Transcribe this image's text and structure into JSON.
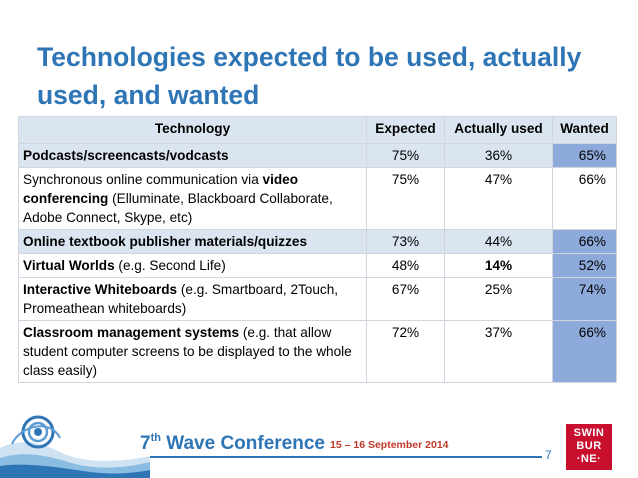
{
  "title": "Technologies expected to be used, actually used, and wanted",
  "table": {
    "headers": {
      "technology": "Technology",
      "expected": "Expected",
      "actually_used": "Actually used",
      "wanted": "Wanted"
    },
    "rows": [
      {
        "tech_parts": [
          {
            "text": "Podcasts/screencasts/vodcasts",
            "bold": true
          }
        ],
        "expected": "75%",
        "actually_used": "36%",
        "wanted": "65%",
        "wanted_highlight": true
      },
      {
        "tech_parts": [
          {
            "text": "Synchronous online communication via ",
            "bold": false
          },
          {
            "text": "video conferencing",
            "bold": true
          },
          {
            "text": " (Elluminate, Blackboard Collaborate, Adobe Connect, Skype, etc)",
            "bold": false
          }
        ],
        "expected": "75%",
        "actually_used": "47%",
        "wanted": "66%",
        "wanted_highlight": false
      },
      {
        "tech_parts": [
          {
            "text": "Online textbook publisher materials/quizzes",
            "bold": true
          }
        ],
        "expected": "73%",
        "actually_used": "44%",
        "wanted": "66%",
        "wanted_highlight": true
      },
      {
        "tech_parts": [
          {
            "text": "Virtual Worlds",
            "bold": true
          },
          {
            "text": " (e.g. Second Life)",
            "bold": false
          }
        ],
        "expected": "48%",
        "actually_used": "14%",
        "actually_used_bold": true,
        "wanted": "52%",
        "wanted_highlight": true
      },
      {
        "tech_parts": [
          {
            "text": "Interactive Whiteboards",
            "bold": true
          },
          {
            "text": " (e.g. Smartboard, 2Touch, Promeathean whiteboards)",
            "bold": false
          }
        ],
        "expected": "67%",
        "actually_used": "25%",
        "wanted": "74%",
        "wanted_highlight": true
      },
      {
        "tech_parts": [
          {
            "text": "Classroom management systems",
            "bold": true
          },
          {
            "text": " (e.g. that allow student computer screens to be displayed to the whole class easily)",
            "bold": false
          }
        ],
        "expected": "72%",
        "actually_used": "37%",
        "wanted": "66%",
        "wanted_highlight": true
      }
    ]
  },
  "footer": {
    "conference_prefix": "7",
    "conference_sup": "th",
    "conference_rest": " Wave Conference",
    "dates": "15 – 16 September 2014",
    "page_number": "7",
    "logo_lines": [
      "SWIN",
      "BUR",
      "·NE·"
    ]
  },
  "colors": {
    "title_blue": "#2e75b6",
    "header_fill": "#dbe5f1",
    "highlight_fill": "#8eaadb",
    "date_red": "#c0392b",
    "logo_red": "#c8102e"
  }
}
